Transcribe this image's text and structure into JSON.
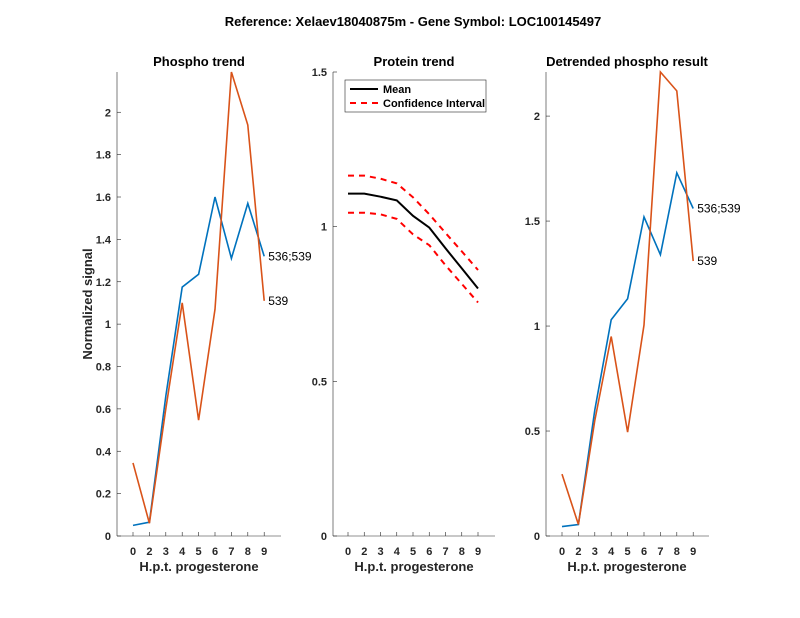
{
  "figure_title": "Reference:  Xelaev18040875m - Gene Symbol:  LOC100145497",
  "colors": {
    "blue": "#0072BD",
    "orange": "#D95319",
    "black": "#000000",
    "red": "#FF0000",
    "axis": "#262626"
  },
  "chart_data": [
    {
      "type": "line",
      "title": "Phospho trend",
      "xlabel": "H.p.t. progesterone",
      "ylabel": "Normalized signal",
      "categories": [
        "0",
        "2",
        "3",
        "4",
        "5",
        "6",
        "7",
        "8",
        "9"
      ],
      "ylim": [
        0,
        2.19
      ],
      "yticks": [
        0,
        0.2,
        0.4,
        0.6,
        0.8,
        1,
        1.2,
        1.4,
        1.6,
        1.8,
        2
      ],
      "ytick_labels": [
        "0",
        "0.2",
        "0.4",
        "0.6",
        "0.8",
        "1",
        "1.2",
        "1.4",
        "1.6",
        "1.8",
        "2"
      ],
      "grid": false,
      "series": [
        {
          "name": "536;539",
          "color": "blue",
          "label": "536;539",
          "values": [
            0.05,
            0.065,
            0.66,
            1.175,
            1.235,
            1.6,
            1.31,
            1.57,
            1.32
          ]
        },
        {
          "name": "539",
          "color": "orange",
          "label": "539",
          "values": [
            0.345,
            0.06,
            0.6,
            1.1,
            0.547,
            1.07,
            2.19,
            1.94,
            1.11
          ]
        }
      ]
    },
    {
      "type": "line",
      "title": "Protein trend",
      "xlabel": "H.p.t. progesterone",
      "ylabel": "",
      "categories": [
        "0",
        "2",
        "3",
        "4",
        "5",
        "6",
        "7",
        "8",
        "9"
      ],
      "ylim": [
        0,
        1.5
      ],
      "yticks": [
        0,
        0.5,
        1,
        1.5
      ],
      "ytick_labels": [
        "0",
        "0.5",
        "1",
        "1.5"
      ],
      "grid": false,
      "legend": {
        "placement": "top-left",
        "entries": [
          "Mean",
          "Confidence Interval"
        ]
      },
      "series": [
        {
          "name": "Mean",
          "color": "black",
          "style": "solid",
          "values": [
            1.107,
            1.107,
            1.097,
            1.085,
            1.035,
            0.997,
            0.93,
            0.865,
            0.8
          ]
        },
        {
          "name": "Confidence Interval (upper)",
          "color": "red",
          "style": "dashed",
          "values": [
            1.165,
            1.165,
            1.155,
            1.14,
            1.095,
            1.04,
            0.98,
            0.92,
            0.86
          ]
        },
        {
          "name": "Confidence Interval (lower)",
          "color": "red",
          "style": "dashed",
          "values": [
            1.045,
            1.045,
            1.04,
            1.025,
            0.975,
            0.94,
            0.875,
            0.815,
            0.755
          ]
        }
      ]
    },
    {
      "type": "line",
      "title": "Detrended phospho result",
      "xlabel": "H.p.t. progesterone",
      "ylabel": "",
      "categories": [
        "0",
        "2",
        "3",
        "4",
        "5",
        "6",
        "7",
        "8",
        "9"
      ],
      "ylim": [
        0,
        2.21
      ],
      "yticks": [
        0,
        0.5,
        1,
        1.5,
        2
      ],
      "ytick_labels": [
        "0",
        "0.5",
        "1",
        "1.5",
        "2"
      ],
      "grid": false,
      "series": [
        {
          "name": "536;539",
          "color": "blue",
          "label": "536;539",
          "values": [
            0.045,
            0.055,
            0.6,
            1.03,
            1.13,
            1.52,
            1.34,
            1.73,
            1.56
          ]
        },
        {
          "name": "539",
          "color": "orange",
          "label": "539",
          "values": [
            0.295,
            0.055,
            0.55,
            0.95,
            0.495,
            1.005,
            2.21,
            2.12,
            1.31
          ]
        }
      ]
    }
  ]
}
